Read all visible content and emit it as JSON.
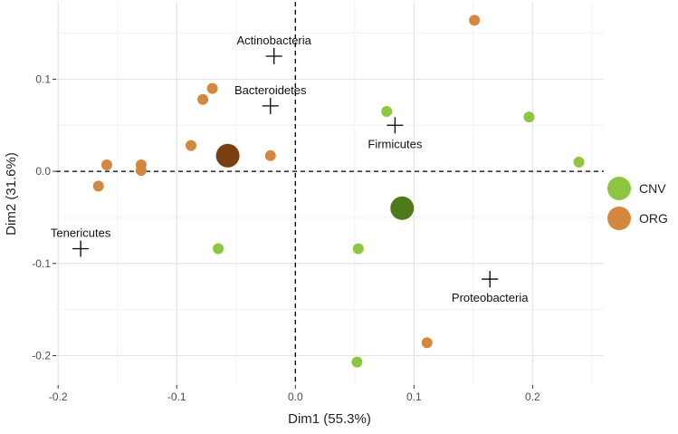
{
  "chart_data": {
    "type": "scatter",
    "title": "",
    "xlabel": "Dim1 (55.3%)",
    "ylabel": "Dim2 (31.6%)",
    "xlim": [
      -0.22,
      0.26
    ],
    "ylim": [
      -0.232,
      0.184
    ],
    "xticks": [
      -0.2,
      -0.1,
      0.0,
      0.1,
      0.2
    ],
    "xtick_labels": [
      "-0.2",
      "-0.1",
      "0.0",
      "0.1",
      "0.2"
    ],
    "yticks": [
      -0.2,
      -0.1,
      0.0,
      0.1
    ],
    "ytick_labels": [
      "-0.2",
      "-0.1",
      "0.0",
      "0.1"
    ],
    "grid": true,
    "legend_position": "right",
    "series": [
      {
        "name": "CNV",
        "color": "#8dc63f",
        "centroid_color": "#4e7a1a",
        "points": [
          [
            0.077,
            0.065
          ],
          [
            0.197,
            0.059
          ],
          [
            0.239,
            0.01
          ],
          [
            -0.065,
            -0.084
          ],
          [
            0.053,
            -0.084
          ],
          [
            0.052,
            -0.207
          ]
        ],
        "centroid": [
          0.09,
          -0.04
        ]
      },
      {
        "name": "ORG",
        "color": "#d4873e",
        "centroid_color": "#7a3f10",
        "points": [
          [
            0.151,
            0.164
          ],
          [
            -0.07,
            0.09
          ],
          [
            -0.078,
            0.078
          ],
          [
            -0.088,
            0.028
          ],
          [
            -0.021,
            0.017
          ],
          [
            -0.159,
            0.007
          ],
          [
            -0.13,
            0.007
          ],
          [
            -0.13,
            0.001
          ],
          [
            -0.166,
            -0.016
          ],
          [
            0.111,
            -0.186
          ]
        ],
        "centroid": [
          -0.057,
          0.017
        ]
      }
    ],
    "taxa": [
      {
        "label": "Actinobacteria",
        "x": -0.018,
        "y": 0.125,
        "label_pos": "above"
      },
      {
        "label": "Bacteroidetes",
        "x": -0.021,
        "y": 0.071,
        "label_pos": "above"
      },
      {
        "label": "Firmicutes",
        "x": 0.084,
        "y": 0.05,
        "label_pos": "below"
      },
      {
        "label": "Tenericutes",
        "x": -0.181,
        "y": -0.084,
        "label_pos": "above"
      },
      {
        "label": "Proteobacteria",
        "x": 0.164,
        "y": -0.117,
        "label_pos": "below"
      }
    ]
  }
}
